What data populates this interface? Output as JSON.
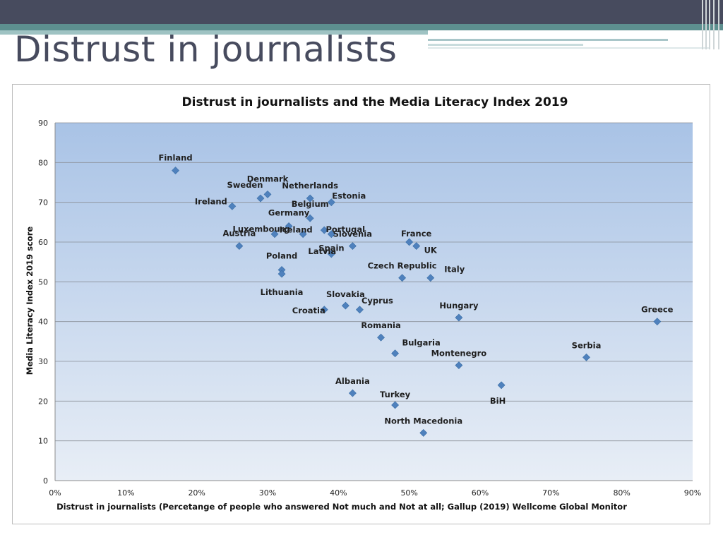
{
  "slide": {
    "title": "Distrust in journalists"
  },
  "colors": {
    "top_bar": "#474b5e",
    "accent_teal": "#5d8f8f",
    "marker": "#4f81bd",
    "plot_top": "#aac4e6",
    "plot_bottom": "#e6ecf5"
  },
  "chart_data": {
    "type": "scatter",
    "title": "Distrust in journalists and the Media Literacy Index 2019",
    "xlabel": "Distrust in journalists (Percetange of people who answered  Not much and  Not at all; Gallup (2019) Wellcome Global Monitor",
    "ylabel": "Media Literacy Index 2019 score",
    "xlim": [
      0,
      90
    ],
    "ylim": [
      0,
      90
    ],
    "x_ticks": [
      0,
      10,
      20,
      30,
      40,
      50,
      60,
      70,
      80,
      90
    ],
    "x_tick_labels": [
      "0%",
      "10%",
      "20%",
      "30%",
      "40%",
      "50%",
      "60%",
      "70%",
      "80%",
      "90%"
    ],
    "y_ticks": [
      0,
      10,
      20,
      30,
      40,
      50,
      60,
      70,
      80,
      90
    ],
    "y_tick_labels": [
      "0",
      "10",
      "20",
      "30",
      "40",
      "50",
      "60",
      "70",
      "80",
      "90"
    ],
    "grid": "horizontal",
    "marker": "diamond",
    "points": [
      {
        "label": "Finland",
        "x": 17,
        "y": 78
      },
      {
        "label": "Denmark",
        "x": 30,
        "y": 72
      },
      {
        "label": "Netherlands",
        "x": 36,
        "y": 71
      },
      {
        "label": "Sweden",
        "x": 29,
        "y": 71
      },
      {
        "label": "Estonia",
        "x": 39,
        "y": 70
      },
      {
        "label": "Ireland",
        "x": 25,
        "y": 69
      },
      {
        "label": "Belgium",
        "x": 36,
        "y": 66
      },
      {
        "label": "Germany",
        "x": 33,
        "y": 64
      },
      {
        "label": "Portugal",
        "x": 38,
        "y": 63
      },
      {
        "label": "Luxembourg",
        "x": 31,
        "y": 62
      },
      {
        "label": "Iceland",
        "x": 35,
        "y": 62
      },
      {
        "label": "Austria",
        "x": 26,
        "y": 59
      },
      {
        "label": "Slovenia",
        "x": 39,
        "y": 62
      },
      {
        "label": "France",
        "x": 50,
        "y": 60
      },
      {
        "label": "UK",
        "x": 51,
        "y": 59
      },
      {
        "label": "Spain",
        "x": 42,
        "y": 59
      },
      {
        "label": "Latvia",
        "x": 39,
        "y": 57
      },
      {
        "label": "Poland",
        "x": 32,
        "y": 53
      },
      {
        "label": "Lithuania",
        "x": 32,
        "y": 52
      },
      {
        "label": "Czech Republic",
        "x": 49,
        "y": 51
      },
      {
        "label": "Italy",
        "x": 53,
        "y": 51
      },
      {
        "label": "Slovakia",
        "x": 41,
        "y": 44
      },
      {
        "label": "Cyprus",
        "x": 43,
        "y": 43
      },
      {
        "label": "Croatia",
        "x": 38,
        "y": 43
      },
      {
        "label": "Hungary",
        "x": 57,
        "y": 41
      },
      {
        "label": "Greece",
        "x": 85,
        "y": 40
      },
      {
        "label": "Romania",
        "x": 46,
        "y": 36
      },
      {
        "label": "Bulgaria",
        "x": 48,
        "y": 32
      },
      {
        "label": "Montenegro",
        "x": 57,
        "y": 29
      },
      {
        "label": "Serbia",
        "x": 75,
        "y": 31
      },
      {
        "label": "Albania",
        "x": 42,
        "y": 22
      },
      {
        "label": "Turkey",
        "x": 48,
        "y": 19
      },
      {
        "label": "BiH",
        "x": 63,
        "y": 24
      },
      {
        "label": "North Macedonia",
        "x": 52,
        "y": 12
      }
    ]
  }
}
